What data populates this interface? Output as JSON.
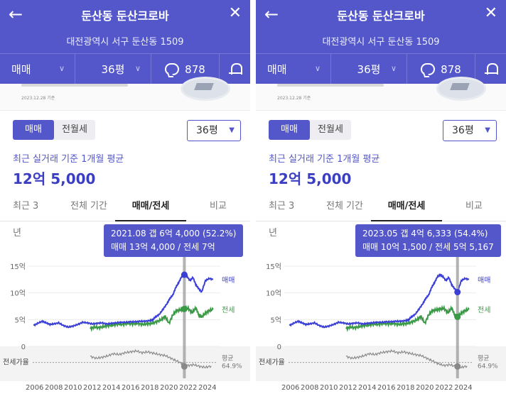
{
  "header": {
    "title": "둔산동 둔산크로바",
    "address": "대전광역시 서구 둔산동 1509"
  },
  "options": {
    "deal_type": "매매",
    "area": "36평",
    "talk_count": "878"
  },
  "info_strip": {
    "date": "2023.12.28 기준"
  },
  "filter": {
    "toggle": [
      "매매",
      "전월세"
    ],
    "area_select": "36평"
  },
  "summary": {
    "subtitle": "최근 실거래 기준 1개월 평균",
    "price": "12억 5,000"
  },
  "tabs": [
    "최근 3년",
    "전체 기간",
    "매매/전세",
    "비교"
  ],
  "chart_labels": {
    "y_ticks": [
      "15억",
      "10억",
      "5억",
      "0"
    ],
    "x_ticks": [
      "2006",
      "2008",
      "2010",
      "2012",
      "2014",
      "2016",
      "2018",
      "2020",
      "2022",
      "2024"
    ],
    "series_sale": "매매",
    "series_jeonse": "전세",
    "ratio_label": "전세가율",
    "avg_label": "평균",
    "avg_value": "64.9%"
  },
  "tooltips": [
    {
      "line1": "2021.08  갭 6억 4,000 (52.2%)",
      "line2": "매매 13억 4,000 / 전세 7억"
    },
    {
      "line1": "2023.05  갭 4억 6,333 (54.4%)",
      "line2": "매매 10억 1,500 / 전세 5억 5,167"
    }
  ],
  "chart_data": {
    "type": "line",
    "unit": "억",
    "ylim": [
      0,
      15
    ],
    "xlim": [
      2005.8,
      2024.9
    ],
    "colors": {
      "sale": "#3b3fd6",
      "jeonse": "#3a9a45",
      "ratio": "#8a8a8a",
      "marker": "#9a9a9a"
    },
    "series": [
      {
        "name": "매매",
        "x": [
          2005.9,
          2006.3,
          2006.8,
          2007.2,
          2007.6,
          2008.0,
          2008.5,
          2009.0,
          2009.5,
          2010.0,
          2010.5,
          2011.0,
          2011.5,
          2012.0,
          2012.5,
          2013.0,
          2013.5,
          2014.0,
          2014.5,
          2015.0,
          2015.5,
          2016.0,
          2016.5,
          2017.0,
          2017.5,
          2018.0,
          2018.3,
          2018.6,
          2019.0,
          2019.4,
          2019.8,
          2020.1,
          2020.4,
          2020.7,
          2021.0,
          2021.3,
          2021.6,
          2021.9,
          2022.2,
          2022.5,
          2022.8,
          2023.1,
          2023.4,
          2023.8,
          2024.2,
          2024.6
        ],
        "values": [
          3.9,
          4.3,
          4.7,
          4.4,
          4.1,
          4.2,
          4.4,
          3.9,
          3.6,
          3.8,
          4.1,
          4.5,
          4.4,
          4.2,
          4.3,
          4.4,
          4.2,
          4.3,
          4.4,
          4.5,
          4.5,
          4.6,
          4.6,
          4.7,
          4.7,
          4.8,
          5.0,
          5.5,
          6.0,
          7.0,
          8.0,
          9.0,
          9.6,
          11.0,
          11.9,
          13.0,
          13.4,
          13.0,
          12.3,
          12.9,
          11.5,
          10.8,
          10.15,
          12.3,
          12.7,
          12.5
        ]
      },
      {
        "name": "전세",
        "x": [
          2011.8,
          2012.2,
          2012.7,
          2013.2,
          2013.7,
          2014.2,
          2014.7,
          2015.2,
          2015.7,
          2016.2,
          2016.7,
          2017.2,
          2017.7,
          2018.2,
          2018.7,
          2019.2,
          2019.6,
          2020.0,
          2020.4,
          2020.8,
          2021.2,
          2021.6,
          2022.0,
          2022.4,
          2022.8,
          2023.1,
          2023.4,
          2023.8,
          2024.2,
          2024.6
        ],
        "values": [
          3.3,
          3.6,
          3.5,
          3.7,
          3.9,
          4.0,
          4.2,
          4.1,
          4.3,
          4.2,
          4.3,
          4.1,
          4.2,
          4.3,
          4.6,
          5.0,
          5.6,
          4.3,
          5.9,
          6.7,
          6.8,
          7.0,
          7.1,
          6.3,
          7.2,
          5.9,
          5.52,
          6.2,
          6.7,
          6.9
        ]
      },
      {
        "name": "전세가율",
        "x": [
          2011.8,
          2012.4,
          2013.0,
          2013.6,
          2014.2,
          2014.8,
          2015.4,
          2016.0,
          2016.6,
          2017.2,
          2017.8,
          2018.4,
          2019.0,
          2019.6,
          2020.2,
          2020.8,
          2021.4,
          2022.0,
          2022.6,
          2023.2,
          2023.8,
          2024.4
        ],
        "values": [
          78,
          74,
          76,
          79,
          84,
          82,
          86,
          88,
          90,
          86,
          88,
          85,
          82,
          80,
          74,
          68,
          62,
          58,
          60,
          56,
          54,
          57
        ]
      }
    ],
    "ratio_ylim": [
      30,
      100
    ],
    "ratio_average": 64.9,
    "markers": [
      2021.6,
      2023.4
    ]
  }
}
